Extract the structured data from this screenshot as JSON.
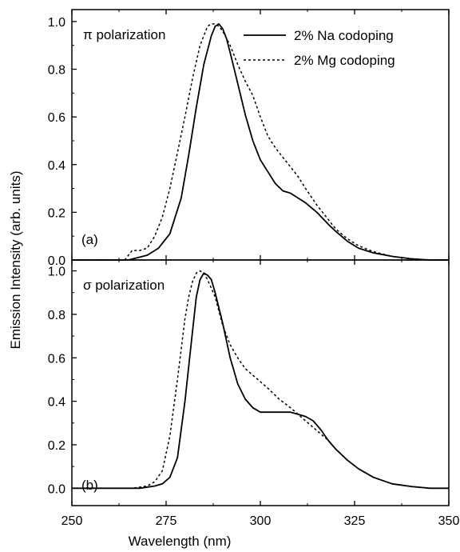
{
  "chart_data": {
    "type": "line",
    "xlabel": "Wavelength (nm)",
    "ylabel": "Emission Intensity (arb. units)",
    "xlim": [
      250,
      350
    ],
    "xticks": [
      250,
      275,
      300,
      325,
      350
    ],
    "xtick_labels": [
      "250",
      "275",
      "300",
      "325",
      "350"
    ],
    "legend": {
      "placement": "top-right"
    },
    "panels": [
      {
        "id": "a",
        "label": "(a)",
        "title": "π polarization",
        "ylim": [
          0,
          1.05
        ],
        "yticks": [
          0.0,
          0.2,
          0.4,
          0.6,
          0.8,
          1.0
        ],
        "ytick_labels": [
          "0.0",
          "0.2",
          "0.4",
          "0.6",
          "0.8",
          "1.0"
        ],
        "series": [
          {
            "name": "2% Na codoping",
            "style": "solid",
            "x": [
              250,
              265,
              270,
              273,
              276,
              279,
              281,
              283,
              285,
              287,
              288,
              289,
              290,
              291,
              292,
              294,
              296,
              298,
              300,
              302,
              304,
              306,
              308,
              310,
              312,
              315,
              318,
              320,
              323,
              326,
              330,
              335,
              340,
              345,
              350
            ],
            "y": [
              0.0,
              0.0,
              0.02,
              0.05,
              0.11,
              0.26,
              0.44,
              0.64,
              0.82,
              0.94,
              0.98,
              0.99,
              0.97,
              0.93,
              0.87,
              0.74,
              0.61,
              0.5,
              0.42,
              0.37,
              0.32,
              0.29,
              0.28,
              0.26,
              0.24,
              0.2,
              0.15,
              0.12,
              0.08,
              0.05,
              0.03,
              0.015,
              0.005,
              0.0,
              0.0
            ]
          },
          {
            "name": "2% Mg codoping",
            "style": "dashed",
            "x": [
              250,
              264,
              266,
              268,
              270,
              272,
              274,
              276,
              278,
              280,
              282,
              284,
              286,
              287,
              288,
              289,
              290,
              292,
              294,
              296,
              298,
              300,
              302,
              304,
              306,
              308,
              310,
              312,
              315,
              318,
              320,
              323,
              326,
              330,
              335,
              340,
              345,
              350
            ],
            "y": [
              0.0,
              0.0,
              0.04,
              0.04,
              0.05,
              0.1,
              0.18,
              0.3,
              0.45,
              0.6,
              0.76,
              0.9,
              0.98,
              0.99,
              0.99,
              0.98,
              0.96,
              0.9,
              0.82,
              0.75,
              0.69,
              0.6,
              0.52,
              0.47,
              0.43,
              0.39,
              0.35,
              0.3,
              0.23,
              0.17,
              0.13,
              0.09,
              0.06,
              0.035,
              0.015,
              0.005,
              0.0,
              0.0
            ]
          }
        ]
      },
      {
        "id": "b",
        "label": "(b)",
        "title": "σ polarization",
        "ylim": [
          -0.08,
          1.05
        ],
        "yticks": [
          0.0,
          0.2,
          0.4,
          0.6,
          0.8,
          1.0
        ],
        "ytick_labels": [
          "0.0",
          "0.2",
          "0.4",
          "0.6",
          "0.8",
          "1.0"
        ],
        "series": [
          {
            "name": "2% Na codoping",
            "style": "solid",
            "x": [
              250,
              268,
              272,
              274,
              276,
              278,
              280,
              282,
              283,
              284,
              285,
              286,
              287,
              288,
              290,
              292,
              294,
              296,
              298,
              300,
              302,
              305,
              308,
              310,
              312,
              314,
              316,
              318,
              320,
              323,
              326,
              330,
              335,
              340,
              345,
              350
            ],
            "y": [
              0.0,
              0.0,
              0.01,
              0.02,
              0.05,
              0.14,
              0.4,
              0.72,
              0.88,
              0.96,
              0.99,
              0.98,
              0.96,
              0.9,
              0.76,
              0.6,
              0.48,
              0.41,
              0.37,
              0.35,
              0.35,
              0.35,
              0.35,
              0.34,
              0.33,
              0.31,
              0.27,
              0.22,
              0.18,
              0.13,
              0.09,
              0.05,
              0.02,
              0.008,
              0.0,
              0.0
            ]
          },
          {
            "name": "2% Mg codoping",
            "style": "dashed",
            "x": [
              250,
              266,
              270,
              272,
              274,
              276,
              278,
              280,
              281,
              282,
              283,
              284,
              285,
              286,
              288,
              290,
              292,
              294,
              296,
              298,
              300,
              302,
              305,
              308,
              310,
              312,
              314,
              316,
              318,
              320,
              323,
              326,
              330,
              335,
              340,
              345,
              350
            ],
            "y": [
              0.0,
              0.0,
              0.01,
              0.03,
              0.08,
              0.24,
              0.5,
              0.78,
              0.88,
              0.95,
              0.99,
              1.0,
              0.99,
              0.96,
              0.88,
              0.75,
              0.66,
              0.6,
              0.55,
              0.52,
              0.49,
              0.46,
              0.41,
              0.37,
              0.34,
              0.31,
              0.28,
              0.25,
              0.22,
              0.18,
              0.13,
              0.09,
              0.05,
              0.02,
              0.008,
              0.0,
              0.0
            ]
          }
        ]
      }
    ]
  }
}
